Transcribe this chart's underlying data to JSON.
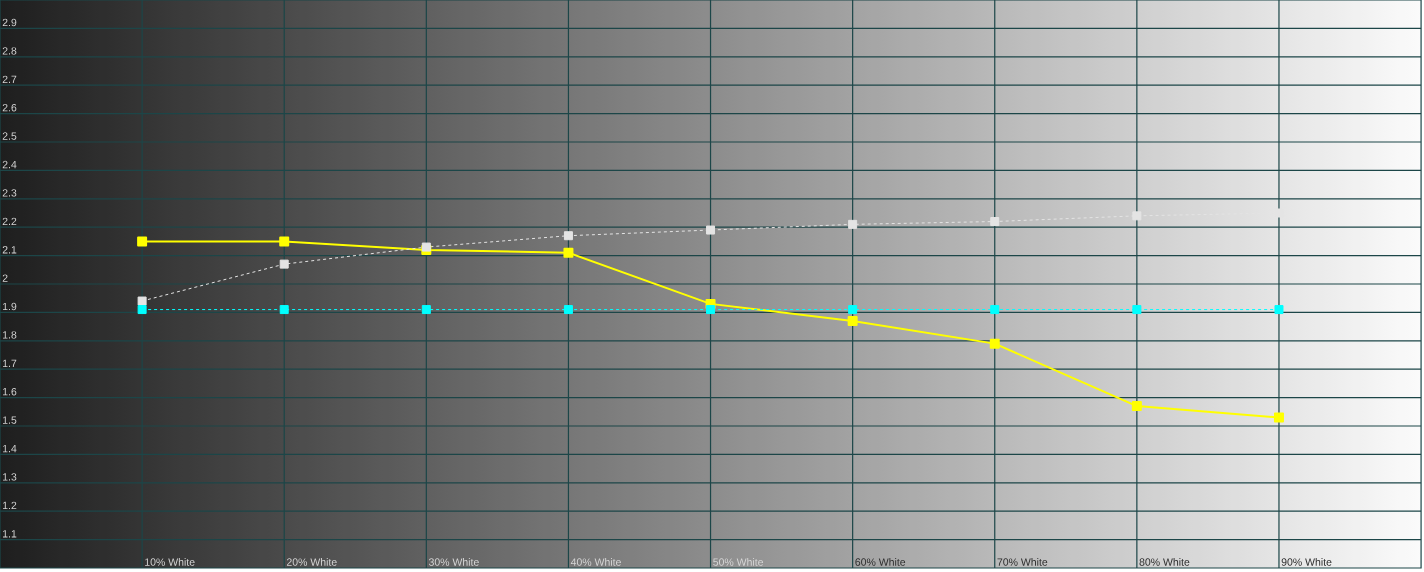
{
  "chart_data": {
    "type": "line",
    "categories": [
      "10% White",
      "20% White",
      "30% White",
      "40% White",
      "50% White",
      "60% White",
      "70% White",
      "80% White",
      "90% White"
    ],
    "series": [
      {
        "color": "#ffff00",
        "line_style": "solid",
        "values": [
          2.15,
          2.15,
          2.12,
          2.11,
          1.93,
          1.87,
          1.79,
          1.57,
          1.53
        ]
      },
      {
        "color": "#e4e4e4",
        "line_style": "dashed",
        "values": [
          1.94,
          2.07,
          2.13,
          2.17,
          2.19,
          2.21,
          2.22,
          2.24,
          2.25
        ]
      },
      {
        "color": "#00ffff",
        "line_style": "dashed",
        "values": [
          1.91,
          1.91,
          1.91,
          1.91,
          1.91,
          1.91,
          1.91,
          1.91,
          1.91
        ]
      }
    ],
    "ylim": [
      1,
      3
    ],
    "yticks": [
      1.1,
      1.2,
      1.3,
      1.4,
      1.5,
      1.6,
      1.7,
      1.8,
      1.9,
      2,
      2.1,
      2.2,
      2.3,
      2.4,
      2.5,
      2.6,
      2.7,
      2.8,
      2.9
    ],
    "grid": true,
    "marker": "square"
  }
}
